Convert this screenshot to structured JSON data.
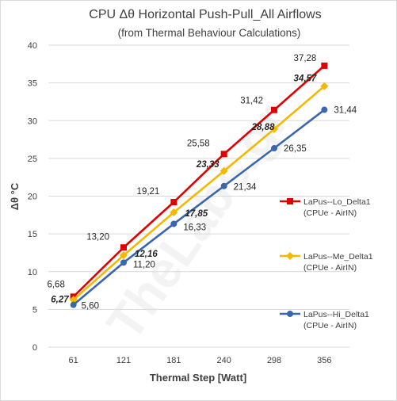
{
  "chart_data": {
    "type": "line",
    "title": "CPU  Δθ   Horizontal  Push-Pull_All Airflows",
    "subtitle": "(from Thermal Behaviour Calculations)",
    "xlabel": "Thermal Step [Watt]",
    "ylabel": "Δθ °C",
    "categories": [
      "61",
      "121",
      "181",
      "240",
      "298",
      "356"
    ],
    "ylim": [
      0,
      40
    ],
    "yticks": [
      0,
      5,
      10,
      15,
      20,
      25,
      30,
      35,
      40
    ],
    "grid": "horizontal",
    "legend_position": "right",
    "series": [
      {
        "name": "LaPus--Lo_Delta1",
        "name_sub": "(CPUe - AirIN)",
        "color": "#e00000",
        "marker": "square",
        "values": [
          6.68,
          13.2,
          19.21,
          25.58,
          31.42,
          37.28
        ],
        "labels": [
          "6,68",
          "13,20",
          "19,21",
          "25,58",
          "31,42",
          "37,28"
        ],
        "label_style": "normal"
      },
      {
        "name": "LaPus--Me_Delta1",
        "name_sub": "(CPUe - AirIN)",
        "color": "#f5b800",
        "marker": "diamond",
        "values": [
          6.27,
          12.16,
          17.85,
          23.33,
          28.88,
          34.57
        ],
        "labels": [
          "6,27",
          "12,16",
          "17,85",
          "23,33",
          "28,88",
          "34,57"
        ],
        "label_style": "bold-italic"
      },
      {
        "name": "LaPus--Hi_Delta1",
        "name_sub": "(CPUe - AirIN)",
        "color": "#3a66b0",
        "marker": "circle",
        "values": [
          5.6,
          11.2,
          16.33,
          21.34,
          26.35,
          31.44
        ],
        "labels": [
          "5,60",
          "11,20",
          "16,33",
          "21,34",
          "26,35",
          "31,44"
        ],
        "label_style": "normal"
      }
    ]
  },
  "watermark_text": "TheLabs.gr"
}
